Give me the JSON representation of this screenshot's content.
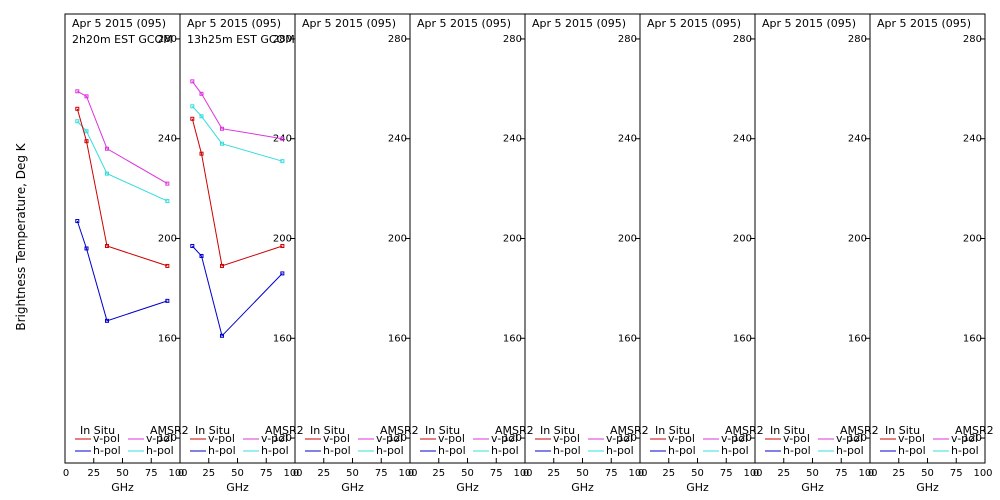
{
  "chart_data": {
    "type": "line",
    "ylabel": "Brightness Temperature, Deg K",
    "xlabel": "GHz",
    "xlim": [
      0,
      100
    ],
    "ylim": [
      110,
      290
    ],
    "xticks": [
      0,
      25,
      50,
      75,
      100
    ],
    "xtick_labels": [
      "0",
      "25",
      "50",
      "75",
      "100"
    ],
    "yticks": [
      120,
      160,
      200,
      240,
      280
    ],
    "ytick_labels": [
      "120",
      "160",
      "200",
      "240",
      "280"
    ],
    "legend": {
      "insitu_label": "In Situ",
      "amsr2_label": "AMSR2",
      "vpol_label": "v-pol",
      "hpol_label": "h-pol"
    },
    "colors": {
      "insitu_v": "#cc0000",
      "insitu_h": "#0000cc",
      "amsr2_v": "#dd33dd",
      "amsr2_h": "#33dddd"
    },
    "panels": [
      {
        "date": "Apr 5 2015 (095)",
        "time": "2h20m EST GCOM",
        "series": [
          {
            "key": "amsr2_v",
            "x": [
              10.7,
              18.7,
              36.5,
              89.0
            ],
            "y": [
              259,
              257,
              236,
              222
            ]
          },
          {
            "key": "amsr2_h",
            "x": [
              10.7,
              18.7,
              36.5,
              89.0
            ],
            "y": [
              247,
              243,
              226,
              215
            ]
          },
          {
            "key": "insitu_v",
            "x": [
              10.7,
              18.7,
              36.5,
              89.0
            ],
            "y": [
              252,
              239,
              197,
              189
            ]
          },
          {
            "key": "insitu_h",
            "x": [
              10.7,
              18.7,
              36.5,
              89.0
            ],
            "y": [
              207,
              196,
              167,
              175
            ]
          }
        ]
      },
      {
        "date": "Apr 5 2015 (095)",
        "time": "13h25m EST GCOM",
        "series": [
          {
            "key": "amsr2_v",
            "x": [
              10.7,
              18.7,
              36.5,
              89.0
            ],
            "y": [
              263,
              258,
              244,
              240
            ]
          },
          {
            "key": "amsr2_h",
            "x": [
              10.7,
              18.7,
              36.5,
              89.0
            ],
            "y": [
              253,
              249,
              238,
              231
            ]
          },
          {
            "key": "insitu_v",
            "x": [
              10.7,
              18.7,
              36.5,
              89.0
            ],
            "y": [
              248,
              234,
              189,
              197
            ]
          },
          {
            "key": "insitu_h",
            "x": [
              10.7,
              18.7,
              36.5,
              89.0
            ],
            "y": [
              197,
              193,
              161,
              186
            ]
          }
        ]
      },
      {
        "date": "Apr 5 2015 (095)",
        "time": "",
        "series": []
      },
      {
        "date": "Apr 5 2015 (095)",
        "time": "",
        "series": []
      },
      {
        "date": "Apr 5 2015 (095)",
        "time": "",
        "series": []
      },
      {
        "date": "Apr 5 2015 (095)",
        "time": "",
        "series": []
      },
      {
        "date": "Apr 5 2015 (095)",
        "time": "",
        "series": []
      },
      {
        "date": "Apr 5 2015 (095)",
        "time": "",
        "series": []
      }
    ]
  }
}
